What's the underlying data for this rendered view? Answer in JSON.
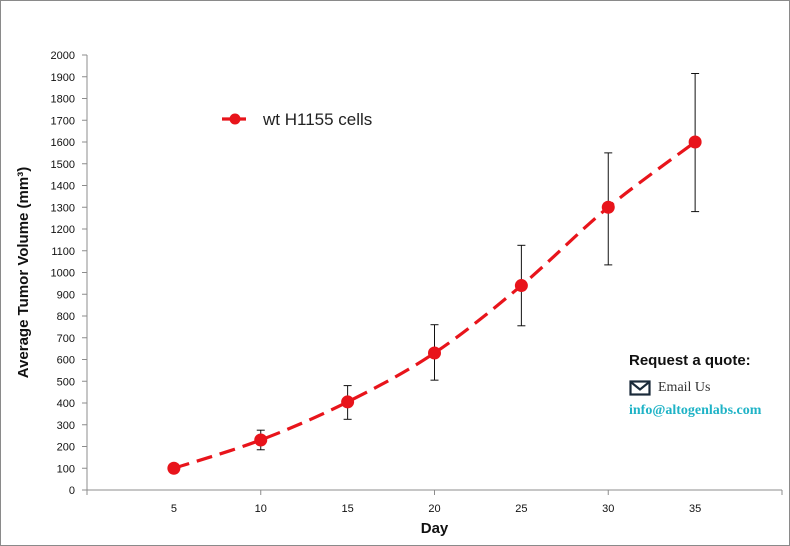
{
  "chart_data": {
    "type": "line",
    "title": "",
    "xlabel": "Day",
    "ylabel": "Average Tumor Volume (mm³)",
    "x": [
      5,
      10,
      15,
      20,
      25,
      30,
      35
    ],
    "xlim": [
      0,
      40
    ],
    "ylim": [
      0,
      2000
    ],
    "ytick_step": 100,
    "grid": false,
    "legend_position": "top-left",
    "series": [
      {
        "name": "wt H1155 cells",
        "color": "#e8141b",
        "line_style": "dashed",
        "marker": "circle",
        "values": [
          100,
          230,
          405,
          630,
          940,
          1300,
          1600
        ],
        "error_plus": [
          12,
          45,
          75,
          130,
          185,
          250,
          315
        ],
        "error_minus": [
          12,
          45,
          80,
          125,
          185,
          265,
          320
        ]
      }
    ]
  },
  "quote": {
    "title": "Request a quote:",
    "email_icon": "envelope-icon",
    "email_label": "Email Us",
    "email_address": "info@altogenlabs.com",
    "link_color": "#1fb3c6"
  }
}
